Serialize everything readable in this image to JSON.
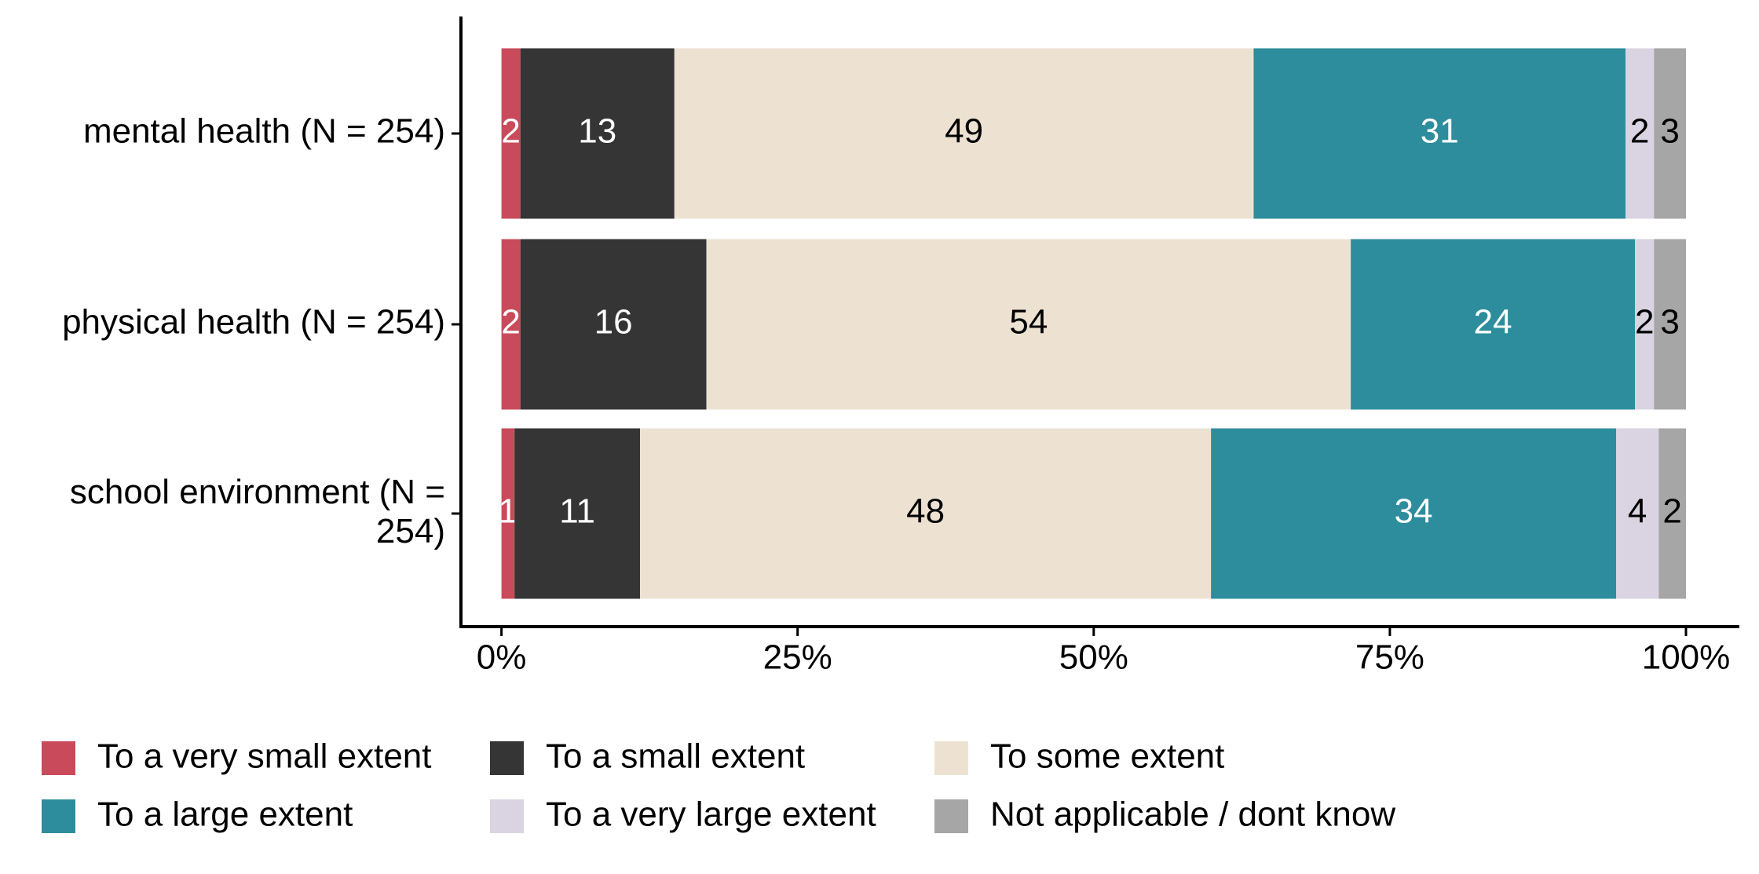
{
  "chart_data": {
    "type": "stacked-barh",
    "categories": [
      "mental health (N = 254)",
      "physical health (N = 254)",
      "school environment (N = 254)"
    ],
    "series": [
      {
        "name": "To a very small extent",
        "color": "#c94a5a",
        "values": [
          1.6,
          1.6,
          1.1
        ],
        "value_labels": [
          "2",
          "2",
          "1"
        ]
      },
      {
        "name": "To a small extent",
        "color": "#353535",
        "values": [
          13.0,
          15.7,
          10.6
        ],
        "value_labels": [
          "13",
          "16",
          "11"
        ]
      },
      {
        "name": "To some extent",
        "color": "#ede2d2",
        "values": [
          48.9,
          54.4,
          48.2
        ],
        "value_labels": [
          "49",
          "54",
          "48"
        ]
      },
      {
        "name": "To a large extent",
        "color": "#2e8d9c",
        "values": [
          31.4,
          24.0,
          34.2
        ],
        "value_labels": [
          "31",
          "24",
          "34"
        ]
      },
      {
        "name": "To a very large extent",
        "color": "#d9d3e2",
        "values": [
          2.4,
          1.6,
          3.6
        ],
        "value_labels": [
          "2",
          "2",
          "4"
        ]
      },
      {
        "name": "Not applicable / dont know",
        "color": "#a6a6a6",
        "values": [
          2.7,
          2.7,
          2.3
        ],
        "value_labels": [
          "3",
          "3",
          "2"
        ]
      }
    ],
    "xlim": [
      0,
      100
    ],
    "xticks": [
      {
        "value": 0,
        "label": "0%"
      },
      {
        "value": 25,
        "label": "25%"
      },
      {
        "value": 50,
        "label": "50%"
      },
      {
        "value": 75,
        "label": "75%"
      },
      {
        "value": 100,
        "label": "100%"
      }
    ],
    "legend": "bottom"
  }
}
